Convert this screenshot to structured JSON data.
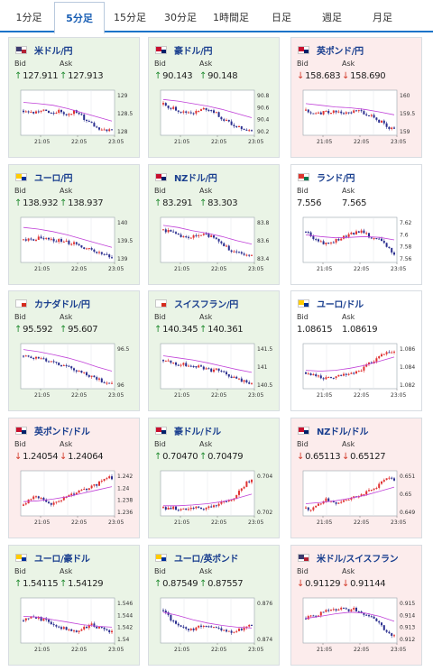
{
  "tabs": [
    {
      "label": "1分足",
      "active": false
    },
    {
      "label": "5分足",
      "active": true
    },
    {
      "label": "15分足",
      "active": false
    },
    {
      "label": "30分足",
      "active": false
    },
    {
      "label": "1時間足",
      "active": false
    },
    {
      "label": "日足",
      "active": false
    },
    {
      "label": "週足",
      "active": false
    },
    {
      "label": "月足",
      "active": false
    }
  ],
  "bid_label": "Bid",
  "ask_label": "Ask",
  "colors": {
    "accent": "#1a73c9",
    "up": "#1f8b2e",
    "down": "#d23a2a",
    "candle_up": "#e03232",
    "candle_down": "#2b2f8f",
    "ma": "#c041d8"
  },
  "cards": [
    {
      "pair": "米ドル/円",
      "bid": "127.911",
      "ask": "127.913",
      "trend": "up",
      "flag": [
        "#b22234",
        "#3c3b6e"
      ],
      "chart": {
        "x_ticks": [
          "21:05",
          "22:05",
          "23:05"
        ],
        "y_ticks": [
          "129",
          "128.5",
          "128"
        ],
        "y_range": [
          127.85,
          129.3
        ],
        "shape": [
          0.55,
          0.5,
          0.5,
          0.55,
          0.55,
          0.5,
          0.5,
          0.55,
          0.45,
          0.5,
          0.55,
          0.45,
          0.3,
          0.25,
          0.15,
          0.12,
          0.08,
          0.05
        ],
        "ma": [
          0.75,
          0.72,
          0.68,
          0.6,
          0.5,
          0.4,
          0.3
        ]
      }
    },
    {
      "pair": "豪ドル/円",
      "bid": "90.143",
      "ask": "90.148",
      "trend": "up",
      "flag": [
        "#012169",
        "#c8102e"
      ],
      "chart": {
        "x_ticks": [
          "21:05",
          "22:05",
          "23:05"
        ],
        "y_ticks": [
          "90.8",
          "90.6",
          "90.4",
          "90.2"
        ],
        "y_range": [
          90.1,
          90.9
        ],
        "shape": [
          0.7,
          0.65,
          0.6,
          0.55,
          0.5,
          0.52,
          0.5,
          0.55,
          0.6,
          0.58,
          0.5,
          0.4,
          0.3,
          0.25,
          0.15,
          0.12,
          0.1,
          0.08
        ],
        "ma": [
          0.82,
          0.78,
          0.72,
          0.66,
          0.58,
          0.48,
          0.38
        ]
      }
    },
    {
      "pair": "英ポンド/円",
      "bid": "158.683",
      "ask": "158.690",
      "trend": "down",
      "flag": [
        "#012169",
        "#c8102e"
      ],
      "chart": {
        "x_ticks": [
          "21:05",
          "22:05",
          "23:05"
        ],
        "y_ticks": [
          "160",
          "159.5",
          "159"
        ],
        "y_range": [
          158.6,
          160.1
        ],
        "shape": [
          0.55,
          0.5,
          0.48,
          0.5,
          0.52,
          0.5,
          0.55,
          0.5,
          0.55,
          0.52,
          0.55,
          0.5,
          0.45,
          0.4,
          0.3,
          0.25,
          0.15,
          0.08
        ],
        "ma": [
          0.72,
          0.68,
          0.64,
          0.62,
          0.58,
          0.52,
          0.45
        ]
      }
    },
    {
      "pair": "ユーロ/円",
      "bid": "138.932",
      "ask": "138.937",
      "trend": "up",
      "flag": [
        "#003399",
        "#ffcc00"
      ],
      "chart": {
        "x_ticks": [
          "21:05",
          "22:05",
          "23:05"
        ],
        "y_ticks": [
          "140",
          "139.5",
          "139"
        ],
        "y_range": [
          138.85,
          140.15
        ],
        "shape": [
          0.5,
          0.52,
          0.5,
          0.55,
          0.5,
          0.52,
          0.5,
          0.48,
          0.45,
          0.42,
          0.4,
          0.35,
          0.3,
          0.25,
          0.2,
          0.15,
          0.12,
          0.08
        ],
        "ma": [
          0.8,
          0.76,
          0.7,
          0.62,
          0.52,
          0.42,
          0.32
        ]
      }
    },
    {
      "pair": "NZドル/円",
      "bid": "83.291",
      "ask": "83.303",
      "trend": "up",
      "flag": [
        "#012169",
        "#c8102e"
      ],
      "chart": {
        "x_ticks": [
          "21:05",
          "22:05",
          "23:05"
        ],
        "y_ticks": [
          "83.8",
          "83.6",
          "83.4"
        ],
        "y_range": [
          83.25,
          83.9
        ],
        "shape": [
          0.75,
          0.7,
          0.65,
          0.6,
          0.55,
          0.55,
          0.58,
          0.6,
          0.62,
          0.6,
          0.55,
          0.45,
          0.35,
          0.25,
          0.2,
          0.15,
          0.12,
          0.1
        ],
        "ma": [
          0.85,
          0.8,
          0.72,
          0.66,
          0.58,
          0.48,
          0.4
        ]
      }
    },
    {
      "pair": "ランド/円",
      "bid": "7.556",
      "ask": "7.565",
      "trend": "flat",
      "flag": [
        "#007a4d",
        "#de3831"
      ],
      "chart": {
        "x_ticks": [
          "21:05",
          "22:05",
          "23:05"
        ],
        "y_ticks": [
          "7.62",
          "7.6",
          "7.58",
          "7.56"
        ],
        "y_range": [
          7.55,
          7.625
        ],
        "shape": [
          0.7,
          0.6,
          0.5,
          0.45,
          0.4,
          0.45,
          0.5,
          0.55,
          0.6,
          0.65,
          0.7,
          0.68,
          0.6,
          0.55,
          0.5,
          0.4,
          0.3,
          0.15
        ],
        "ma": [
          0.62,
          0.58,
          0.55,
          0.56,
          0.58,
          0.56,
          0.5
        ]
      }
    },
    {
      "pair": "カナダドル/円",
      "bid": "95.592",
      "ask": "95.607",
      "trend": "up",
      "flag": [
        "#d52b1e",
        "#ffffff"
      ],
      "chart": {
        "x_ticks": [
          "21:05",
          "22:05",
          "23:05"
        ],
        "y_ticks": [
          "96.5",
          "96"
        ],
        "y_range": [
          95.5,
          96.8
        ],
        "shape": [
          0.75,
          0.72,
          0.7,
          0.68,
          0.65,
          0.6,
          0.58,
          0.55,
          0.5,
          0.45,
          0.42,
          0.35,
          0.3,
          0.25,
          0.2,
          0.15,
          0.1,
          0.06
        ],
        "ma": [
          0.9,
          0.85,
          0.78,
          0.7,
          0.6,
          0.48,
          0.38
        ]
      }
    },
    {
      "pair": "スイスフラン/円",
      "bid": "140.345",
      "ask": "140.361",
      "trend": "up",
      "flag": [
        "#d52b1e",
        "#ffffff"
      ],
      "chart": {
        "x_ticks": [
          "21:05",
          "22:05",
          "23:05"
        ],
        "y_ticks": [
          "141.5",
          "141",
          "140.5"
        ],
        "y_range": [
          140.3,
          141.8
        ],
        "shape": [
          0.65,
          0.6,
          0.55,
          0.52,
          0.55,
          0.5,
          0.48,
          0.5,
          0.45,
          0.4,
          0.42,
          0.38,
          0.3,
          0.25,
          0.2,
          0.15,
          0.12,
          0.1
        ],
        "ma": [
          0.75,
          0.7,
          0.65,
          0.58,
          0.5,
          0.42,
          0.35
        ]
      }
    },
    {
      "pair": "ユーロ/ドル",
      "bid": "1.08615",
      "ask": "1.08619",
      "trend": "flat",
      "flag": [
        "#003399",
        "#ffcc00"
      ],
      "chart": {
        "x_ticks": [
          "21:05",
          "22:05",
          "23:05"
        ],
        "y_ticks": [
          "1.086",
          "1.084",
          "1.082"
        ],
        "y_range": [
          1.0805,
          1.0875
        ],
        "shape": [
          0.35,
          0.3,
          0.25,
          0.22,
          0.2,
          0.22,
          0.25,
          0.28,
          0.3,
          0.32,
          0.35,
          0.45,
          0.55,
          0.6,
          0.7,
          0.8,
          0.85,
          0.82
        ],
        "ma": [
          0.4,
          0.38,
          0.4,
          0.45,
          0.52,
          0.62,
          0.72
        ]
      }
    },
    {
      "pair": "英ポンド/ドル",
      "bid": "1.24054",
      "ask": "1.24064",
      "trend": "down",
      "flag": [
        "#012169",
        "#c8102e"
      ],
      "chart": {
        "x_ticks": [
          "21:05",
          "22:05",
          "23:05"
        ],
        "y_ticks": [
          "1.242",
          "1.24",
          "1.238",
          "1.236"
        ],
        "y_range": [
          1.235,
          1.2425
        ],
        "shape": [
          0.2,
          0.35,
          0.45,
          0.4,
          0.3,
          0.25,
          0.28,
          0.35,
          0.4,
          0.45,
          0.5,
          0.55,
          0.6,
          0.65,
          0.7,
          0.8,
          0.9,
          0.85
        ],
        "ma": [
          0.3,
          0.32,
          0.36,
          0.42,
          0.5,
          0.58,
          0.66
        ]
      }
    },
    {
      "pair": "豪ドル/ドル",
      "bid": "0.70470",
      "ask": "0.70479",
      "trend": "up",
      "flag": [
        "#012169",
        "#c8102e"
      ],
      "chart": {
        "x_ticks": [
          "21:05",
          "22:05",
          "23:05"
        ],
        "y_ticks": [
          "0.704",
          "0.702"
        ],
        "y_range": [
          0.7005,
          0.7055
        ],
        "shape": [
          0.15,
          0.12,
          0.15,
          0.12,
          0.1,
          0.12,
          0.15,
          0.12,
          0.15,
          0.18,
          0.2,
          0.25,
          0.3,
          0.35,
          0.45,
          0.6,
          0.75,
          0.8
        ],
        "ma": [
          0.2,
          0.2,
          0.22,
          0.25,
          0.3,
          0.38,
          0.48
        ]
      }
    },
    {
      "pair": "NZドル/ドル",
      "bid": "0.65113",
      "ask": "0.65127",
      "trend": "down",
      "flag": [
        "#012169",
        "#c8102e"
      ],
      "chart": {
        "x_ticks": [
          "21:05",
          "22:05",
          "23:05"
        ],
        "y_ticks": [
          "0.651",
          "0.65",
          "0.649"
        ],
        "y_range": [
          0.6485,
          0.6515
        ],
        "shape": [
          0.15,
          0.12,
          0.2,
          0.3,
          0.35,
          0.3,
          0.25,
          0.3,
          0.35,
          0.4,
          0.45,
          0.5,
          0.55,
          0.6,
          0.7,
          0.8,
          0.85,
          0.82
        ],
        "ma": [
          0.25,
          0.28,
          0.32,
          0.38,
          0.45,
          0.55,
          0.65
        ]
      }
    },
    {
      "pair": "ユーロ/豪ドル",
      "bid": "1.54115",
      "ask": "1.54129",
      "trend": "up",
      "flag": [
        "#003399",
        "#ffcc00"
      ],
      "chart": {
        "x_ticks": [
          "21:05",
          "22:05",
          "23:05"
        ],
        "y_ticks": [
          "1.546",
          "1.544",
          "1.542",
          "1.54"
        ],
        "y_range": [
          1.5395,
          1.5465
        ],
        "shape": [
          0.5,
          0.55,
          0.6,
          0.55,
          0.5,
          0.45,
          0.4,
          0.35,
          0.3,
          0.28,
          0.25,
          0.3,
          0.35,
          0.4,
          0.35,
          0.3,
          0.25,
          0.22
        ],
        "ma": [
          0.6,
          0.58,
          0.52,
          0.46,
          0.4,
          0.36,
          0.34
        ]
      }
    },
    {
      "pair": "ユーロ/英ポンド",
      "bid": "0.87549",
      "ask": "0.87557",
      "trend": "up",
      "flag": [
        "#003399",
        "#ffcc00"
      ],
      "chart": {
        "x_ticks": [
          "21:05",
          "22:05",
          "23:05"
        ],
        "y_ticks": [
          "0.876",
          "0.874"
        ],
        "y_range": [
          0.8738,
          0.8772
        ],
        "shape": [
          0.75,
          0.6,
          0.45,
          0.35,
          0.3,
          0.25,
          0.3,
          0.35,
          0.4,
          0.35,
          0.3,
          0.28,
          0.25,
          0.22,
          0.25,
          0.3,
          0.35,
          0.4
        ],
        "ma": [
          0.7,
          0.62,
          0.52,
          0.44,
          0.38,
          0.34,
          0.32
        ]
      }
    },
    {
      "pair": "米ドル/スイスフラン",
      "bid": "0.91129",
      "ask": "0.91144",
      "trend": "down",
      "flag": [
        "#b22234",
        "#3c3b6e"
      ],
      "chart": {
        "x_ticks": [
          "21:05",
          "22:05",
          "23:05"
        ],
        "y_ticks": [
          "0.915",
          "0.914",
          "0.913",
          "0.912"
        ],
        "y_range": [
          0.9108,
          0.9155
        ],
        "shape": [
          0.55,
          0.65,
          0.6,
          0.7,
          0.72,
          0.75,
          0.78,
          0.8,
          0.75,
          0.78,
          0.72,
          0.65,
          0.6,
          0.55,
          0.45,
          0.3,
          0.2,
          0.12
        ],
        "ma": [
          0.55,
          0.6,
          0.66,
          0.7,
          0.68,
          0.6,
          0.48
        ]
      }
    }
  ]
}
